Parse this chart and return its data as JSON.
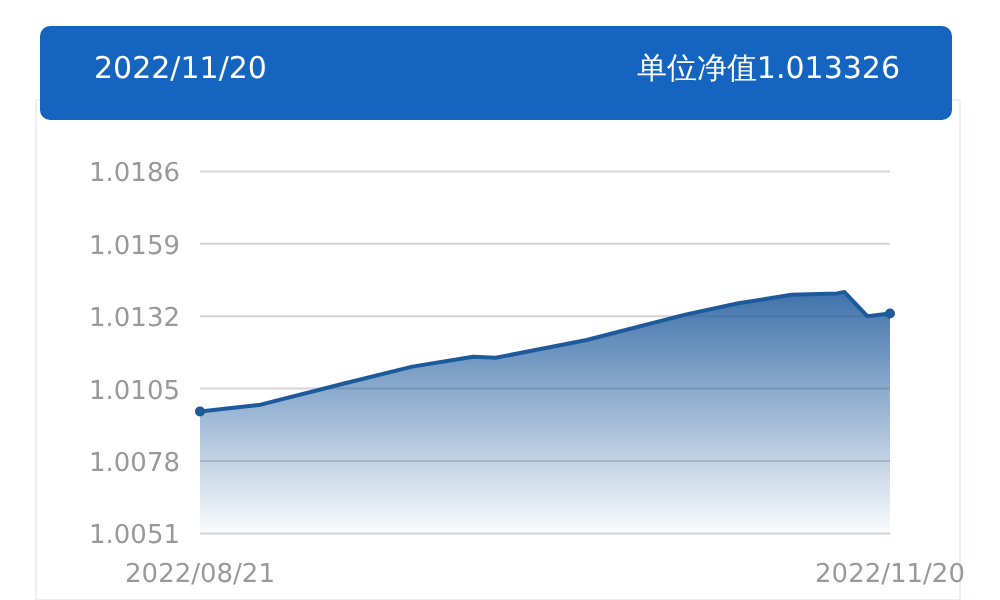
{
  "chart_data": {
    "type": "area",
    "title": "2022/11/20",
    "subtitle": "单位净值1.013326",
    "x": [
      "2022-08-21",
      "2022-08-29",
      "2022-09-09",
      "2022-09-18",
      "2022-09-26",
      "2022-09-29",
      "2022-10-11",
      "2022-10-24",
      "2022-10-31",
      "2022-11-07",
      "2022-11-13",
      "2022-11-14",
      "2022-11-17",
      "2022-11-20"
    ],
    "series": [
      {
        "color": "#1d5a9c",
        "values": [
          1.00965,
          1.0099,
          1.01069,
          1.01132,
          1.01169,
          1.01165,
          1.01231,
          1.01326,
          1.01368,
          1.014,
          1.01405,
          1.0141,
          1.0132,
          1.0133
        ]
      }
    ],
    "xlim": [
      "2022-08-21",
      "2022-11-20"
    ],
    "xticks": [
      {
        "value": "2022-08-21",
        "label": "2022/08/21"
      },
      {
        "value": "2022-11-20",
        "label": "2022/11/20"
      }
    ],
    "ylim": [
      1.0051,
      1.0186
    ],
    "yticks": [
      1.0051,
      1.0078,
      1.0105,
      1.0132,
      1.0159,
      1.0186
    ],
    "grid": "y"
  }
}
